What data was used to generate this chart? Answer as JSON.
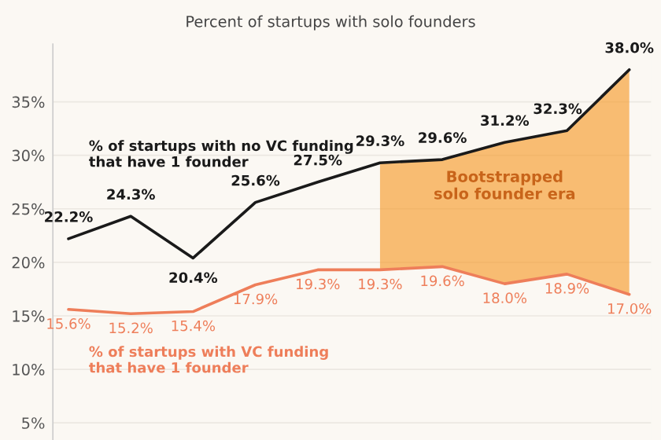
{
  "chart_data": {
    "type": "line",
    "title": "Percent of startups with solo founders",
    "categories": [
      null,
      null,
      null,
      null,
      null,
      null,
      null,
      null,
      null,
      null
    ],
    "series": [
      {
        "name": "% of startups with no VC funding\nthat have 1 founder",
        "color": "#1a1a1a",
        "values": [
          22.2,
          24.3,
          20.4,
          25.6,
          27.5,
          29.3,
          29.6,
          31.2,
          32.3,
          38.0
        ],
        "value_labels": [
          "22.2%",
          "24.3%",
          "20.4%",
          "25.6%",
          "27.5%",
          "29.3%",
          "29.6%",
          "31.2%",
          "32.3%",
          "38.0%"
        ]
      },
      {
        "name": "% of startups with VC funding\nthat have 1 founder",
        "color": "#ee7e5a",
        "values": [
          15.6,
          15.2,
          15.4,
          17.9,
          19.3,
          19.3,
          19.6,
          18.0,
          18.9,
          17.0
        ],
        "value_labels": [
          "15.6%",
          "15.2%",
          "15.4%",
          "17.9%",
          "19.3%",
          "19.3%",
          "19.6%",
          "18.0%",
          "18.9%",
          "17.0%"
        ]
      }
    ],
    "annotations": [
      "Bootstrapped\nsolo founder era"
    ],
    "ylim": [
      3.4,
      40.4
    ],
    "yticks": [
      {
        "value": 5,
        "label": "5%"
      },
      {
        "value": 10,
        "label": "10%"
      },
      {
        "value": 15,
        "label": "15%"
      },
      {
        "value": 20,
        "label": "20%"
      },
      {
        "value": 25,
        "label": "25%"
      },
      {
        "value": 30,
        "label": "30%"
      },
      {
        "value": 35,
        "label": "35%"
      }
    ],
    "grid": "y",
    "legend": false,
    "marker": "none",
    "line_style": "solid"
  }
}
